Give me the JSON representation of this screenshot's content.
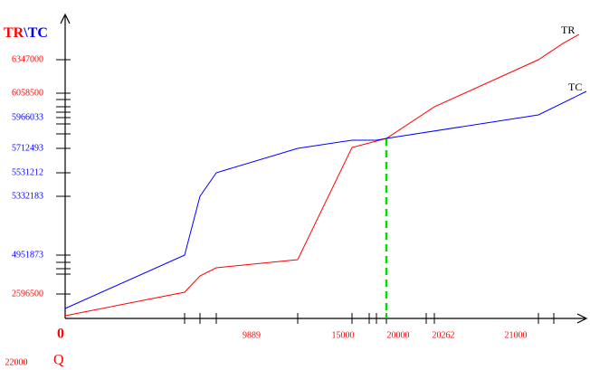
{
  "chart_data": {
    "type": "line",
    "y_axis_label": [
      {
        "text": "TR",
        "color": "#ff0000"
      },
      {
        "text": "\\TC",
        "color": "#0000ff"
      }
    ],
    "x_axis_label": "Q",
    "annotations": [
      {
        "text": "0",
        "color": "#ff0000"
      },
      {
        "text": "22000",
        "color": "#ff0000"
      }
    ],
    "xlim": [
      0,
      21720
    ],
    "xticks": [
      9889,
      15000,
      20000,
      20262,
      21000
    ],
    "xtick_color": "#ff0000",
    "ylim": [
      0,
      6721000
    ],
    "yticks": [
      2596500,
      4951873,
      5332183,
      5531212,
      5712493,
      5966033,
      6058500,
      6347000
    ],
    "ytick_colors": [
      "#ff0000",
      "#0000ff",
      "#0000ff",
      "#0000ff",
      "#0000ff",
      "#0000ff",
      "#ff0000",
      "#ff0000"
    ],
    "series": [
      {
        "name": "TR",
        "color": "#ff0000",
        "x": [
          0,
          6337,
          7153,
          8017,
          12470,
          15820,
          18935,
          20210,
          21231,
          21480,
          21646
        ],
        "values": [
          288500,
          2706000,
          3692000,
          4185000,
          4678000,
          5720000,
          5794500,
          6007000,
          6347000,
          6487000,
          6565000
        ]
      },
      {
        "name": "TC",
        "color": "#0000ff",
        "x": [
          0,
          6337,
          7153,
          8017,
          12470,
          15820,
          18033,
          18935,
          21231,
          21720
        ],
        "values": [
          1058000,
          4951873,
          5332183,
          5531212,
          5712493,
          5779600,
          5779600,
          5794500,
          5976300,
          6074100
        ]
      }
    ],
    "marker": {
      "x": 18935,
      "y": 5794500,
      "color": "#00dd00"
    }
  }
}
